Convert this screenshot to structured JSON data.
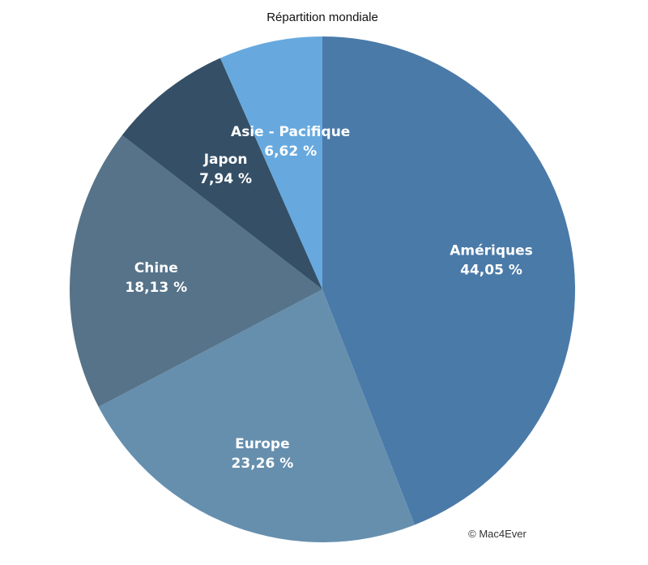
{
  "chart_data": {
    "type": "pie",
    "title": "Répartition mondiale",
    "slices": [
      {
        "label": "Amériques",
        "value": 44.05,
        "value_label": "44,05 %",
        "color": "#4a7aa8"
      },
      {
        "label": "Europe",
        "value": 23.26,
        "value_label": "23,26 %",
        "color": "#668fae"
      },
      {
        "label": "Chine",
        "value": 18.13,
        "value_label": "18,13 %",
        "color": "#567389"
      },
      {
        "label": "Japon",
        "value": 7.94,
        "value_label": "7,94 %",
        "color": "#344f66"
      },
      {
        "label": "Asie - Pacifique",
        "value": 6.62,
        "value_label": "6,62 %",
        "color": "#67a9de"
      }
    ],
    "start": "top",
    "direction": "clockwise"
  },
  "credit": "© Mac4Ever"
}
